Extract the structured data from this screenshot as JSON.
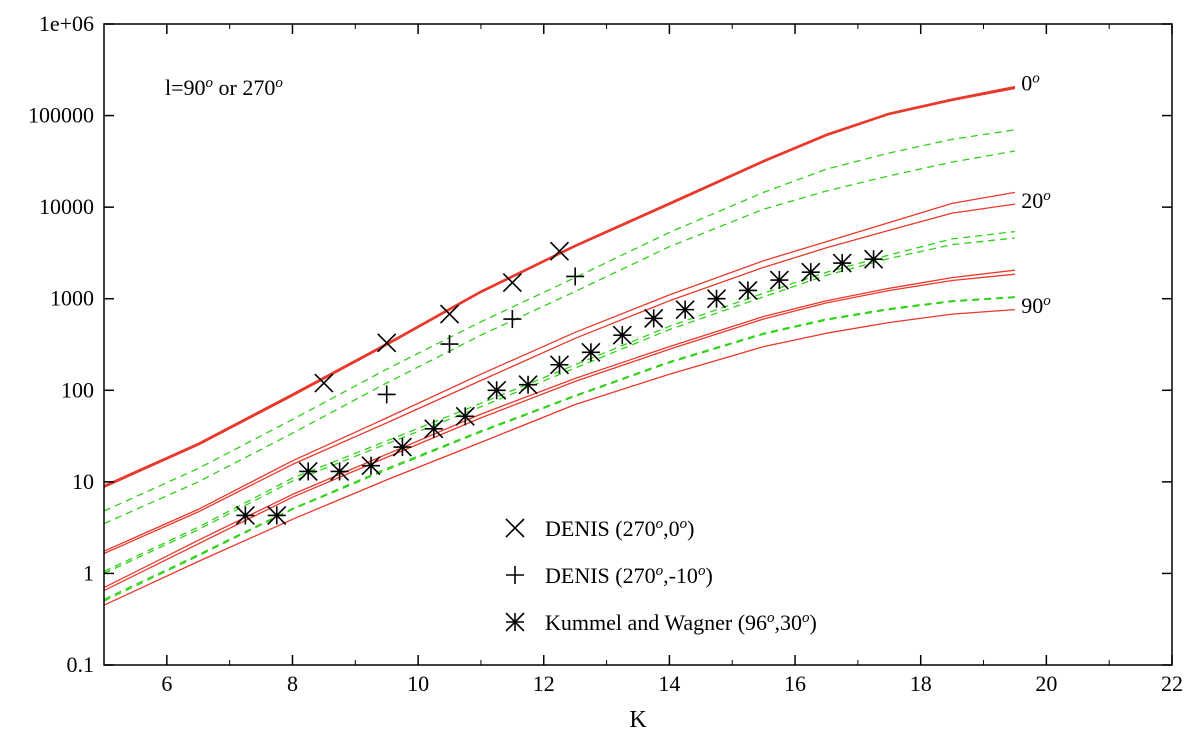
{
  "chart_data": {
    "type": "line",
    "title": "",
    "xlabel": "K",
    "ylabel": "",
    "xlim": [
      5,
      22
    ],
    "ylim": [
      0.1,
      1000000
    ],
    "yscale": "log",
    "grid": false,
    "x_ticks": [
      6,
      8,
      10,
      12,
      14,
      16,
      18,
      20,
      22
    ],
    "y_ticks": [
      {
        "value": 0.1,
        "label": "0.1"
      },
      {
        "value": 1,
        "label": "1"
      },
      {
        "value": 10,
        "label": "10"
      },
      {
        "value": 100,
        "label": "100"
      },
      {
        "value": 1000,
        "label": "1000"
      },
      {
        "value": 10000,
        "label": "10000"
      },
      {
        "value": 100000,
        "label": "100000"
      },
      {
        "value": 1000000,
        "label": "1e+06"
      }
    ],
    "annotation_main": {
      "base": "l=90",
      "sup1": "o",
      "mid": " or 270",
      "sup2": "o"
    },
    "curve_labels": [
      {
        "base": "0",
        "sup": "o",
        "at_x": 19.6,
        "at_y": 230000
      },
      {
        "base": "20",
        "sup": "o",
        "at_x": 19.6,
        "at_y": 12000
      },
      {
        "base": "90",
        "sup": "o",
        "at_x": 19.6,
        "at_y": 850
      }
    ],
    "series": [
      {
        "style": "red",
        "width": 2.2,
        "x": [
          5,
          6.5,
          8,
          9.5,
          11,
          12.5,
          14,
          15.5,
          16.5,
          17.5,
          18.5,
          19.5
        ],
        "y": [
          9,
          26,
          90,
          320,
          1200,
          3800,
          11000,
          32000,
          62000,
          105000,
          150000,
          205000
        ]
      },
      {
        "style": "red",
        "width": 2.2,
        "x": [
          5,
          6.5,
          8,
          9.5,
          11,
          12.5,
          14,
          15.5,
          16.5,
          17.5,
          18.5,
          19.5
        ],
        "y": [
          8.8,
          25.5,
          88,
          315,
          1180,
          3750,
          10800,
          31500,
          61000,
          104000,
          148000,
          200000
        ]
      },
      {
        "style": "green-dash",
        "width": 1.3,
        "x": [
          5,
          6.5,
          8,
          9.5,
          11,
          12.5,
          14,
          15.5,
          16.5,
          17.5,
          18.5,
          19.5
        ],
        "y": [
          4.8,
          14,
          48,
          170,
          560,
          1700,
          5300,
          14500,
          26000,
          39000,
          55000,
          70000
        ]
      },
      {
        "style": "green-dash",
        "width": 1.3,
        "x": [
          5,
          6.5,
          8,
          9.5,
          11,
          12.5,
          14,
          15.5,
          16.5,
          17.5,
          18.5,
          19.5
        ],
        "y": [
          3.5,
          10,
          34,
          120,
          400,
          1200,
          3700,
          9500,
          15000,
          22000,
          31000,
          41000
        ]
      },
      {
        "style": "red",
        "width": 1.3,
        "x": [
          5,
          6.5,
          8,
          9.5,
          11,
          12.5,
          14,
          15.5,
          16.5,
          17.5,
          18.5,
          19.5
        ],
        "y": [
          1.75,
          5,
          17,
          50,
          150,
          430,
          1100,
          2600,
          4200,
          6800,
          11000,
          14500
        ]
      },
      {
        "style": "red",
        "width": 1.3,
        "x": [
          5,
          6.5,
          8,
          9.5,
          11,
          12.5,
          14,
          15.5,
          16.5,
          17.5,
          18.5,
          19.5
        ],
        "y": [
          1.65,
          4.7,
          15.5,
          44,
          128,
          370,
          950,
          2200,
          3600,
          5600,
          8600,
          10800
        ]
      },
      {
        "style": "green-dash",
        "width": 1.3,
        "x": [
          5,
          6.5,
          8,
          9.5,
          11,
          12.5,
          14,
          15.5,
          16.5,
          17.5,
          18.5,
          19.5
        ],
        "y": [
          1.05,
          3.2,
          11,
          28,
          72,
          190,
          500,
          1150,
          1950,
          3000,
          4500,
          5400
        ]
      },
      {
        "style": "green-dash",
        "width": 1.3,
        "x": [
          5,
          6.5,
          8,
          9.5,
          11,
          12.5,
          14,
          15.5,
          16.5,
          17.5,
          18.5,
          19.5
        ],
        "y": [
          1.0,
          3.0,
          10.2,
          26,
          66,
          175,
          460,
          1050,
          1800,
          2750,
          3900,
          4600
        ]
      },
      {
        "style": "red",
        "width": 1.3,
        "x": [
          5,
          6.5,
          8,
          9.5,
          11,
          12.5,
          14,
          15.5,
          16.5,
          17.5,
          18.5,
          19.5
        ],
        "y": [
          0.7,
          2.3,
          7.3,
          20,
          55,
          135,
          300,
          640,
          950,
          1300,
          1700,
          2050
        ]
      },
      {
        "style": "red",
        "width": 1.3,
        "x": [
          5,
          6.5,
          8,
          9.5,
          11,
          12.5,
          14,
          15.5,
          16.5,
          17.5,
          18.5,
          19.5
        ],
        "y": [
          0.65,
          2.1,
          6.8,
          18.5,
          50,
          125,
          280,
          600,
          900,
          1230,
          1580,
          1850
        ]
      },
      {
        "style": "green-dash",
        "width": 1.3,
        "x": [
          5,
          6.5,
          8,
          9.5,
          11,
          12.5,
          14,
          15.5,
          16.5,
          17.5,
          18.5,
          19.5
        ],
        "y": [
          0.52,
          1.6,
          5.1,
          14,
          36,
          88,
          205,
          420,
          600,
          780,
          950,
          1050
        ]
      },
      {
        "style": "green-dash",
        "width": 1.3,
        "x": [
          5,
          6.5,
          8,
          9.5,
          11,
          12.5,
          14,
          15.5,
          16.5,
          17.5,
          18.5,
          19.5
        ],
        "y": [
          0.5,
          1.55,
          5.0,
          13.5,
          35,
          86,
          200,
          410,
          585,
          760,
          930,
          1030
        ]
      },
      {
        "style": "red",
        "width": 1.3,
        "x": [
          5,
          6.5,
          8,
          9.5,
          11,
          12.5,
          14,
          15.5,
          16.5,
          17.5,
          18.5,
          19.5
        ],
        "y": [
          0.45,
          1.35,
          3.9,
          10.5,
          27,
          70,
          150,
          300,
          420,
          550,
          680,
          760
        ]
      }
    ],
    "points": [
      {
        "marker": "x",
        "x": [
          8.5,
          9.5,
          10.5,
          11.5,
          12.25
        ],
        "y": [
          120,
          330,
          680,
          1500,
          3300
        ]
      },
      {
        "marker": "plus",
        "x": [
          9.5,
          10.5,
          11.5,
          12.5
        ],
        "y": [
          90,
          320,
          600,
          1750
        ]
      },
      {
        "marker": "asterisk",
        "x": [
          7.25,
          7.75,
          8.25,
          8.75,
          9.25,
          9.75,
          10.25,
          10.75,
          11.25,
          11.75,
          12.25,
          12.75,
          13.25,
          13.75,
          14.25,
          14.75,
          15.25,
          15.75,
          16.25,
          16.75,
          17.25
        ],
        "y": [
          4.3,
          4.3,
          13,
          13,
          15,
          24,
          38,
          52,
          100,
          115,
          190,
          260,
          400,
          610,
          760,
          1000,
          1230,
          1600,
          1950,
          2450,
          2700
        ]
      }
    ],
    "legend": [
      {
        "marker": "x",
        "name_base": "DENIS (270",
        "sup1": "o",
        "name_mid": ",0",
        "sup2": "o",
        "name_end": ")"
      },
      {
        "marker": "plus",
        "name_base": "DENIS (270",
        "sup1": "o",
        "name_mid": ",-10",
        "sup2": "o",
        "name_end": ")"
      },
      {
        "marker": "asterisk",
        "name_base": "Kummel and Wagner (96",
        "sup1": "o",
        "name_mid": ",30",
        "sup2": "o",
        "name_end": ")"
      }
    ],
    "colors": {
      "red": "#e8392c",
      "green": "#31d11a",
      "axis": "#000000"
    }
  }
}
